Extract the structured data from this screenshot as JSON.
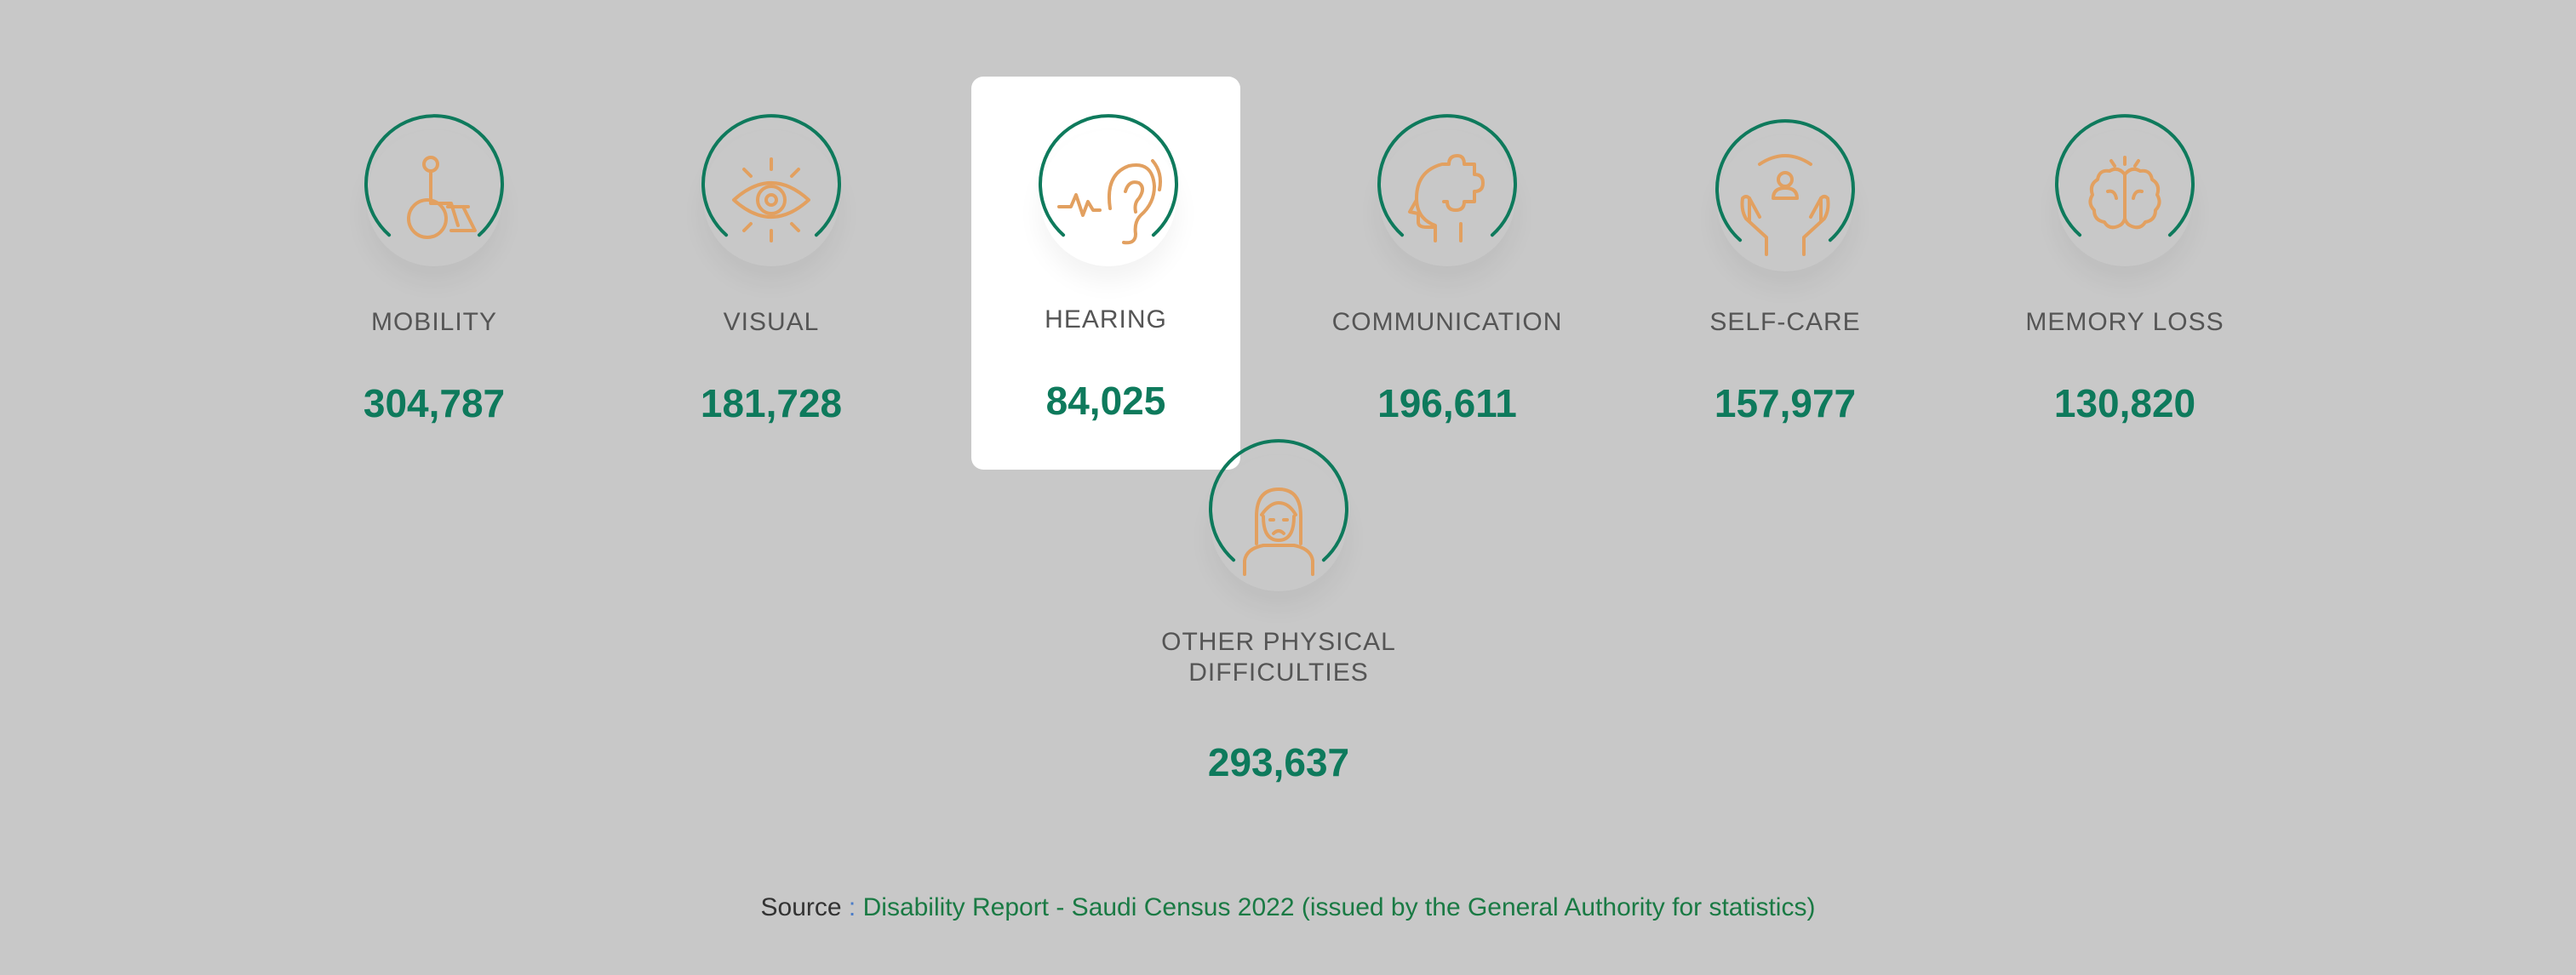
{
  "accent": "#0e7a5c",
  "icon_color": "#e2a060",
  "categories": [
    {
      "id": "mobility",
      "label": "MOBILITY",
      "value": "304,787",
      "icon": "wheelchair-icon"
    },
    {
      "id": "visual",
      "label": "VISUAL",
      "value": "181,728",
      "icon": "eye-icon"
    },
    {
      "id": "hearing",
      "label": "HEARING",
      "value": "84,025",
      "icon": "ear-icon",
      "selected": true
    },
    {
      "id": "communication",
      "label": "COMMUNICATION",
      "value": "196,611",
      "icon": "head-puzzle-icon"
    },
    {
      "id": "self-care",
      "label": "SELF-CARE",
      "value": "157,977",
      "icon": "caring-hands-icon"
    },
    {
      "id": "memory-loss",
      "label": "MEMORY LOSS",
      "value": "130,820",
      "icon": "brain-icon"
    },
    {
      "id": "other-physical",
      "label_line1": "OTHER PHYSICAL",
      "label_line2": "DIFFICULTIES",
      "value": "293,637",
      "icon": "person-icon"
    }
  ],
  "source": {
    "prefix": "Source",
    "separator": ":",
    "text": "Disability Report - Saudi Census 2022 (issued by the General Authority for statistics)"
  }
}
